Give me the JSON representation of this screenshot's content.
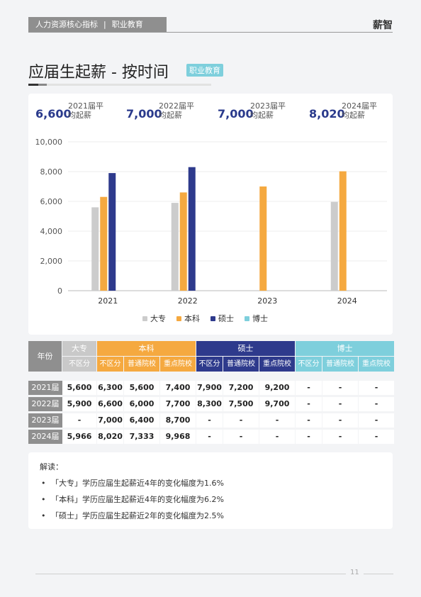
{
  "header": {
    "section": "人力资源核心指标",
    "category": "职业教育",
    "brand": "薪智"
  },
  "title": {
    "text": "应届生起薪 - 按时间",
    "tag": "职业教育"
  },
  "stats": [
    {
      "value": "6,600",
      "label": "2021届平均起薪"
    },
    {
      "value": "7,000",
      "label": "2022届平均起薪"
    },
    {
      "value": "7,000",
      "label": "2023届平均起薪"
    },
    {
      "value": "8,020",
      "label": "2024届平均起薪"
    }
  ],
  "chart_data": {
    "type": "bar",
    "categories": [
      "2021",
      "2022",
      "2023",
      "2024"
    ],
    "series": [
      {
        "name": "大专",
        "color": "#cccccc",
        "values": [
          5600,
          5900,
          null,
          5966
        ]
      },
      {
        "name": "本科",
        "color": "#f5a940",
        "values": [
          6300,
          6600,
          7000,
          8020
        ]
      },
      {
        "name": "硕士",
        "color": "#2e3a8c",
        "values": [
          7900,
          8300,
          null,
          null
        ]
      },
      {
        "name": "博士",
        "color": "#7ecfdc",
        "values": [
          null,
          null,
          null,
          null
        ]
      }
    ],
    "ylim": [
      0,
      10000
    ],
    "yticks": [
      "0",
      "2,000",
      "4,000",
      "6,000",
      "8,000",
      "10,000"
    ],
    "legend_position": "bottom",
    "grid": true
  },
  "table": {
    "corner": "年份",
    "groups": [
      {
        "label": "大专",
        "color": "#c9c9c9",
        "subs": [
          "不区分"
        ]
      },
      {
        "label": "本科",
        "color": "#f5a940",
        "subs": [
          "不区分",
          "普通院校",
          "重点院校"
        ]
      },
      {
        "label": "硕士",
        "color": "#2e3a8c",
        "subs": [
          "不区分",
          "普通院校",
          "重点院校"
        ]
      },
      {
        "label": "博士",
        "color": "#7ecfdc",
        "subs": [
          "不区分",
          "普通院校",
          "重点院校"
        ]
      }
    ],
    "rows": [
      {
        "label": "2021届",
        "cells": [
          "5,600",
          "6,300",
          "5,600",
          "7,400",
          "7,900",
          "7,200",
          "9,200",
          "-",
          "-",
          "-"
        ]
      },
      {
        "label": "2022届",
        "cells": [
          "5,900",
          "6,600",
          "6,000",
          "7,700",
          "8,300",
          "7,500",
          "9,700",
          "-",
          "-",
          "-"
        ]
      },
      {
        "label": "2023届",
        "cells": [
          "-",
          "7,000",
          "6,400",
          "8,700",
          "-",
          "-",
          "-",
          "-",
          "-",
          "-"
        ]
      },
      {
        "label": "2024届",
        "cells": [
          "5,966",
          "8,020",
          "7,333",
          "9,968",
          "-",
          "-",
          "-",
          "-",
          "-",
          "-"
        ]
      }
    ]
  },
  "notes": {
    "heading": "解读：",
    "items": [
      "「大专」学历应届生起薪近4年的变化幅度为1.6%",
      "「本科」学历应届生起薪近4年的变化幅度为6.2%",
      "「硕士」学历应届生起薪近2年的变化幅度为2.5%"
    ]
  },
  "page_number": "11"
}
